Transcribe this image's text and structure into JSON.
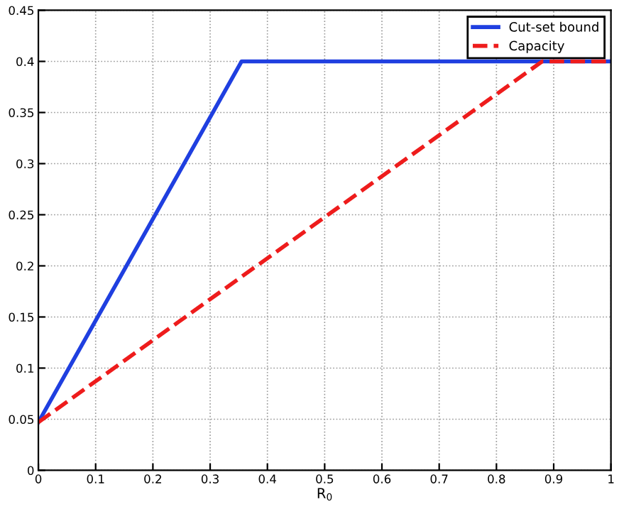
{
  "chart_data": {
    "type": "line",
    "xlabel": "R$_{0}$",
    "series": [
      {
        "name": "Cut-set bound",
        "color": "#1f3fe0",
        "x": [
          0,
          0.355,
          1
        ],
        "values": [
          0.047,
          0.4,
          0.4
        ],
        "line_style": "solid"
      },
      {
        "name": "Capacity",
        "color": "#ee1c1c",
        "x": [
          0,
          0.88,
          1
        ],
        "values": [
          0.047,
          0.4,
          0.4
        ],
        "line_style": "dashed"
      }
    ],
    "xlim": [
      0,
      1
    ],
    "xticks": [
      0,
      0.1,
      0.2,
      0.3,
      0.4,
      0.5,
      0.6,
      0.7,
      0.8,
      0.9,
      1
    ],
    "ylim": [
      0,
      0.45
    ],
    "yticks": [
      0,
      0.05,
      0.1,
      0.15,
      0.2,
      0.25,
      0.3,
      0.35,
      0.4,
      0.45
    ],
    "grid": true,
    "legend": "top right",
    "marker": "none"
  }
}
